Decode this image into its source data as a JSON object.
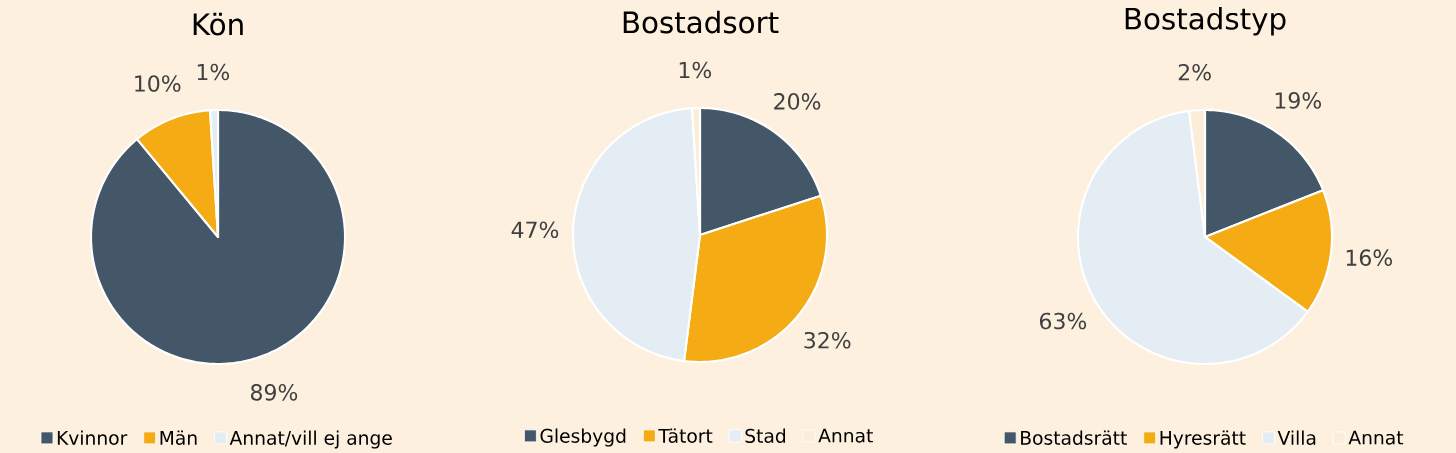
{
  "chart_data": [
    {
      "type": "pie",
      "title": "Kön",
      "categories": [
        "Kvinnor",
        "Män",
        "Annat/vill ej ange"
      ],
      "values": [
        89,
        10,
        1
      ],
      "value_labels": [
        "89%",
        "10%",
        "1%"
      ],
      "colors": [
        "#435768",
        "#f5ab14",
        "#e4ecf4"
      ],
      "legend": "bottom"
    },
    {
      "type": "pie",
      "title": "Bostadsort",
      "categories": [
        "Glesbygd",
        "Tätort",
        "Stad",
        "Annat"
      ],
      "values": [
        20,
        32,
        47,
        1
      ],
      "value_labels": [
        "20%",
        "32%",
        "47%",
        "1%"
      ],
      "colors": [
        "#435768",
        "#f5ab14",
        "#e4ecf4",
        "#fcedd9"
      ],
      "legend": "bottom"
    },
    {
      "type": "pie",
      "title": "Bostadstyp",
      "categories": [
        "Bostadsrätt",
        "Hyresrätt",
        "Villa",
        "Annat"
      ],
      "values": [
        19,
        16,
        63,
        2
      ],
      "value_labels": [
        "19%",
        "16%",
        "63%",
        "2%"
      ],
      "colors": [
        "#435768",
        "#f5ab14",
        "#e4ecf4",
        "#fcedd9"
      ],
      "legend": "bottom"
    }
  ]
}
